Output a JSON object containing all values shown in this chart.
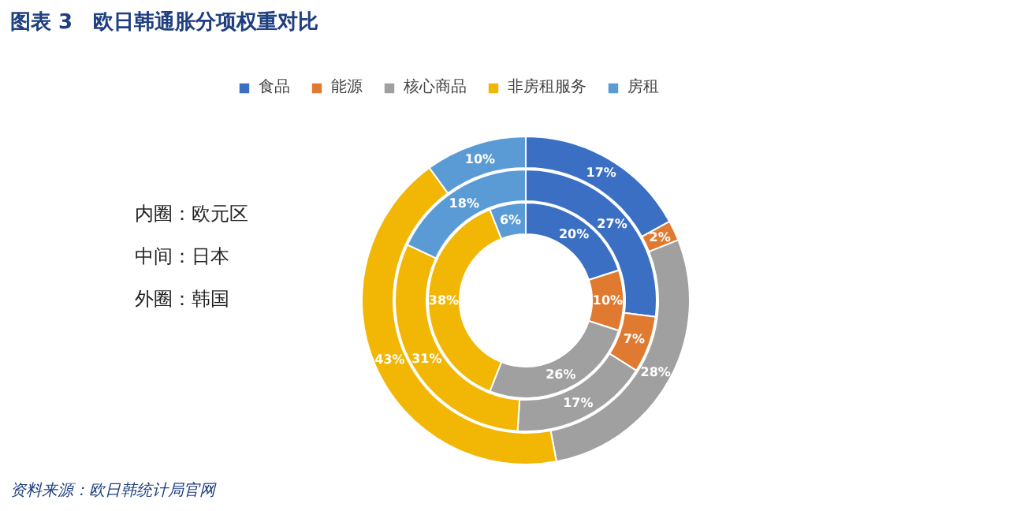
{
  "chart_data": {
    "type": "donut",
    "title": "图表 3　欧日韩通胀分项权重对比",
    "categories": [
      "食品",
      "能源",
      "核心商品",
      "非房租服务",
      "房租"
    ],
    "colors": [
      "#3a6fc4",
      "#e07a30",
      "#a0a0a0",
      "#f2b705",
      "#5b9bd5"
    ],
    "series": [
      {
        "values": [
          20,
          10,
          26,
          38,
          6
        ],
        "value_labels": [
          "20%",
          "10%",
          "26%",
          "38%",
          "6%"
        ]
      },
      {
        "values": [
          27,
          7,
          17,
          31,
          18
        ],
        "value_labels": [
          "27%",
          "7%",
          "17%",
          "31%",
          "18%"
        ]
      },
      {
        "values": [
          17,
          2,
          28,
          43,
          10
        ],
        "value_labels": [
          "17%",
          "2%",
          "28%",
          "43%",
          "10%"
        ]
      }
    ],
    "legend": "top",
    "annotations": [
      "内圈：欧元区",
      "中间：日本",
      "外圈：韩国",
      "资料来源：欧日韩统计局官网"
    ]
  }
}
